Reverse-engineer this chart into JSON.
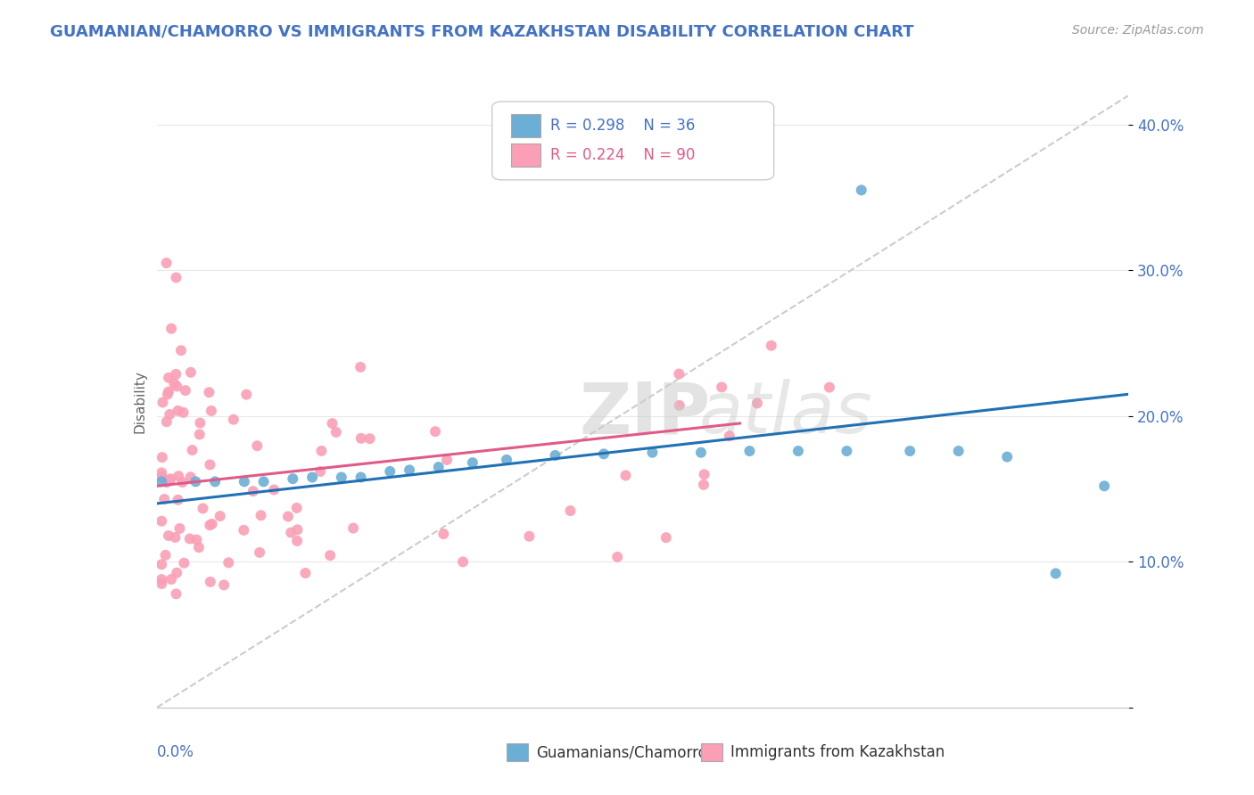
{
  "title": "GUAMANIAN/CHAMORRO VS IMMIGRANTS FROM KAZAKHSTAN DISABILITY CORRELATION CHART",
  "source": "Source: ZipAtlas.com",
  "ylabel": "Disability",
  "xlim": [
    0.0,
    0.2
  ],
  "ylim": [
    0.0,
    0.42
  ],
  "yticks": [
    0.0,
    0.1,
    0.2,
    0.3,
    0.4
  ],
  "ytick_labels": [
    "",
    "10.0%",
    "20.0%",
    "30.0%",
    "40.0%"
  ],
  "legend_r1": "R = 0.298",
  "legend_n1": "N = 36",
  "legend_r2": "R = 0.224",
  "legend_n2": "N = 90",
  "series1_color": "#6baed6",
  "series2_color": "#fa9fb5",
  "series1_label": "Guamanians/Chamorros",
  "series2_label": "Immigrants from Kazakhstan",
  "trendline1_color": "#2171b5",
  "trendline2_color": "#e05a8a",
  "background_color": "#ffffff",
  "trendline1_x": [
    0.0,
    0.2
  ],
  "trendline1_y": [
    0.14,
    0.215
  ],
  "trendline2_x": [
    0.0,
    0.12
  ],
  "trendline2_y": [
    0.152,
    0.195
  ],
  "refline_x": [
    0.0,
    0.2
  ],
  "refline_y": [
    0.0,
    0.42
  ]
}
